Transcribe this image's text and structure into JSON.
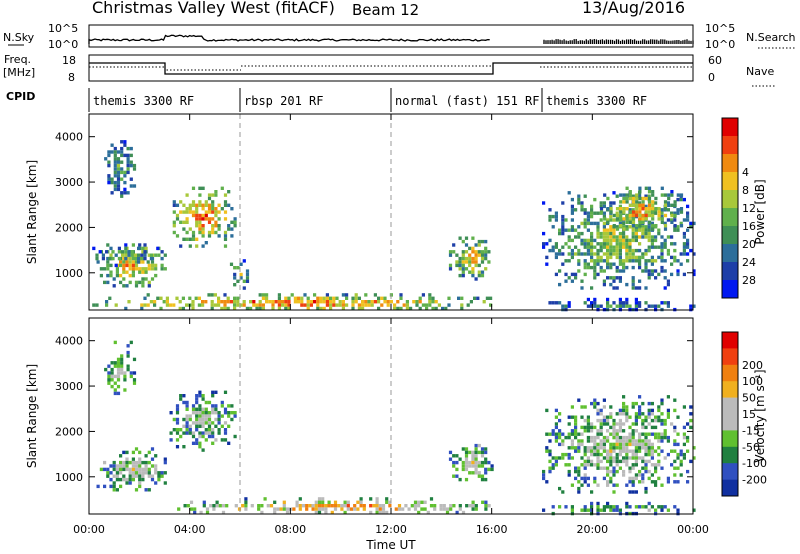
{
  "header": {
    "title": "Christmas Valley West (fitACF)",
    "beam": "Beam 12",
    "date": "13/Aug/2016"
  },
  "strip_labels": {
    "nsky": "N.Sky",
    "nsearch": "N.Search",
    "freq": "Freq.",
    "freq_unit": "[MHz]",
    "nave": "Nave",
    "cpid": "CPID",
    "nsky_ticks": [
      "10^5",
      "10^0"
    ],
    "nsearch_ticks": [
      "10^5",
      "10^0"
    ],
    "freq_ticks": [
      "18",
      "8"
    ],
    "nave_ticks": [
      "60",
      "0"
    ]
  },
  "cpid_segments": [
    {
      "label": "themis 3300 RF",
      "start": 0,
      "end": 6
    },
    {
      "label": "rbsp 201 RF",
      "start": 6,
      "end": 12
    },
    {
      "label": "normal (fast) 151 RF",
      "start": 12,
      "end": 18
    },
    {
      "label": "themis 3300 RF",
      "start": 18,
      "end": 24
    }
  ],
  "axes": {
    "ylabel": "Slant Range [km]",
    "yticks": [
      "1000",
      "2000",
      "3000",
      "4000"
    ],
    "xticks": [
      "00:00",
      "04:00",
      "08:00",
      "12:00",
      "16:00",
      "20:00",
      "00:00"
    ],
    "xlabel": "Time UT"
  },
  "chart_data": [
    {
      "type": "heatmap",
      "name": "power",
      "x_range_hours": [
        0,
        24
      ],
      "ylim": [
        180,
        4500
      ],
      "colorbar_label": "Power [dB]",
      "colorbar_ticks": [
        "4",
        "8",
        "12",
        "16",
        "20",
        "24",
        "28"
      ],
      "colors": [
        "#0018f0",
        "#1e3fa8",
        "#2c6e9a",
        "#3f8f56",
        "#60b04c",
        "#a8c83a",
        "#f0c020",
        "#f08a10",
        "#f04010",
        "#e00000"
      ],
      "regions": [
        {
          "t0": 0.3,
          "t1": 3.0,
          "r0": 700,
          "r1": 1650,
          "level": 0.75
        },
        {
          "t0": 0.0,
          "t1": 2.7,
          "r0": 1200,
          "r1": 1650,
          "level": 0.45
        },
        {
          "t0": 3.2,
          "t1": 5.8,
          "r0": 1600,
          "r1": 2900,
          "level": 0.8
        },
        {
          "t0": 0.6,
          "t1": 1.8,
          "r0": 2700,
          "r1": 4000,
          "level": 0.4
        },
        {
          "t0": 5.6,
          "t1": 6.3,
          "r0": 700,
          "r1": 1300,
          "level": 0.55
        },
        {
          "t0": 0.0,
          "t1": 16.0,
          "r0": 200,
          "r1": 550,
          "level": 0.85
        },
        {
          "t0": 14.3,
          "t1": 16.0,
          "r0": 900,
          "r1": 1800,
          "level": 0.7
        },
        {
          "t0": 18.0,
          "t1": 24.0,
          "r0": 700,
          "r1": 2800,
          "level": 0.55
        },
        {
          "t0": 20.3,
          "t1": 23.5,
          "r0": 1900,
          "r1": 2900,
          "level": 0.75
        },
        {
          "t0": 18.0,
          "t1": 24.0,
          "r0": 200,
          "r1": 450,
          "level": 0.3
        }
      ],
      "gaps_hours": [
        [
          16.0,
          18.0
        ]
      ]
    },
    {
      "type": "heatmap",
      "name": "velocity",
      "x_range_hours": [
        0,
        24
      ],
      "ylim": [
        180,
        4500
      ],
      "colorbar_label": "Velocity [m s⁻¹]",
      "colorbar_ticks": [
        "200",
        "100",
        "50",
        "15",
        "-15",
        "-50",
        "-100",
        "-200"
      ],
      "colors": [
        "#1030a0",
        "#3050c0",
        "#208040",
        "#60c030",
        "#bbbbbb",
        "#bbbbbb",
        "#f0b020",
        "#f08010",
        "#f04010",
        "#e00000"
      ],
      "regions": [
        {
          "t0": 0.3,
          "t1": 3.0,
          "r0": 700,
          "r1": 1650,
          "level": 0.5
        },
        {
          "t0": 3.2,
          "t1": 5.8,
          "r0": 1600,
          "r1": 2900,
          "level": 0.45
        },
        {
          "t0": 0.6,
          "t1": 1.8,
          "r0": 2700,
          "r1": 4000,
          "level": 0.5
        },
        {
          "t0": 3.5,
          "t1": 16.0,
          "r0": 200,
          "r1": 550,
          "level": 0.75
        },
        {
          "t0": 14.3,
          "t1": 16.0,
          "r0": 900,
          "r1": 1800,
          "level": 0.5
        },
        {
          "t0": 18.0,
          "t1": 24.0,
          "r0": 700,
          "r1": 2800,
          "level": 0.5
        },
        {
          "t0": 18.0,
          "t1": 24.0,
          "r0": 200,
          "r1": 450,
          "level": 0.35
        }
      ],
      "gaps_hours": [
        [
          16.0,
          18.0
        ]
      ]
    }
  ]
}
